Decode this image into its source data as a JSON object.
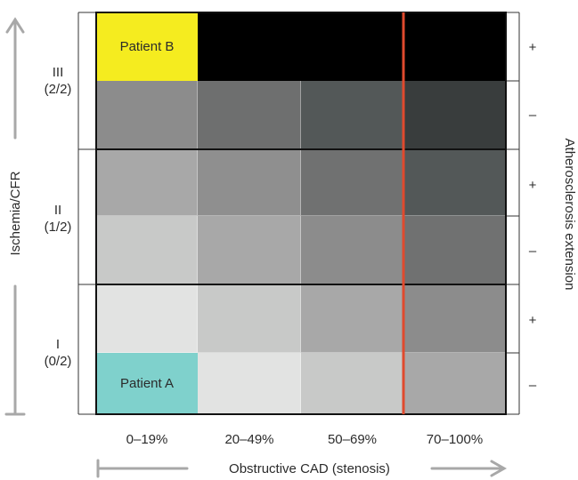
{
  "x_axis": {
    "title": "Obstructive CAD (stenosis)",
    "categories": [
      "0–19%",
      "20–49%",
      "50–69%",
      "70–100%"
    ]
  },
  "y_axis": {
    "title": "Ischemia/CFR",
    "groups": [
      {
        "label": "III",
        "sub": "(2/2)"
      },
      {
        "label": "II",
        "sub": "(1/2)"
      },
      {
        "label": "I",
        "sub": "(0/2)"
      }
    ]
  },
  "right_axis": {
    "title": "Atherosclerosis extension",
    "signs": [
      "+",
      "–",
      "+",
      "–",
      "+",
      "–"
    ]
  },
  "patients": {
    "b": {
      "label": "Patient B",
      "color": "#f5ec1f"
    },
    "a": {
      "label": "Patient A",
      "color": "#7fd1cc"
    }
  },
  "colors": {
    "grid": [
      [
        "#f5ec1f",
        "#000000",
        "#000000",
        "#000000"
      ],
      [
        "#8c8c8c",
        "#6e6f6f",
        "#535858",
        "#393d3d"
      ],
      [
        "#a8a8a8",
        "#8f8f8f",
        "#707171",
        "#535858"
      ],
      [
        "#c8c9c8",
        "#a8a8a8",
        "#8c8c8c",
        "#707171"
      ],
      [
        "#e2e3e2",
        "#c8c9c8",
        "#a8a8a8",
        "#8c8c8c"
      ],
      [
        "#7fd1cc",
        "#e2e3e2",
        "#c8c9c8",
        "#a8a8a8"
      ]
    ],
    "threshold_line": "#e04a2e",
    "arrow": "#a8a8a8"
  }
}
